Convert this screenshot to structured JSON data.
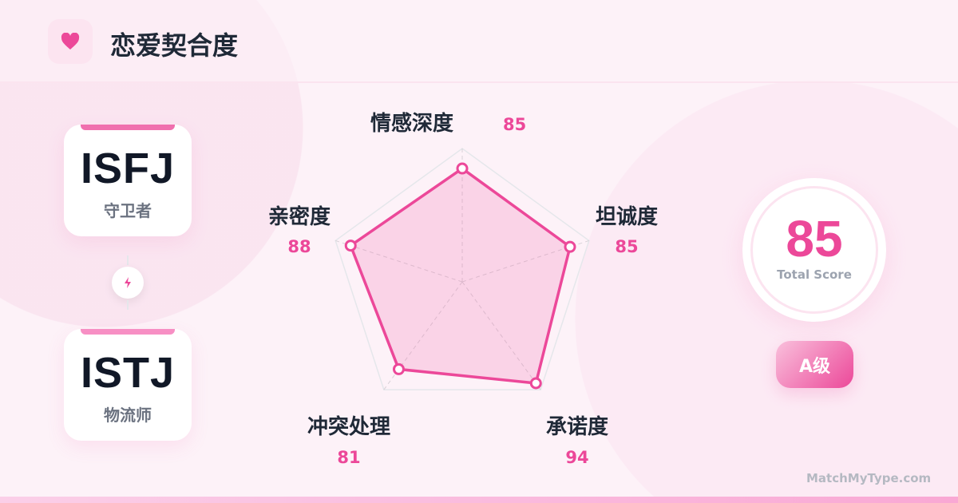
{
  "header": {
    "title": "恋爱契合度",
    "icon": "heart-icon"
  },
  "types": [
    {
      "code": "ISFJ",
      "role": "守卫者"
    },
    {
      "code": "ISTJ",
      "role": "物流师"
    }
  ],
  "connector_icon": "lightning-icon",
  "score": {
    "value": "85",
    "label": "Total Score",
    "grade": "A级"
  },
  "brand": "MatchMyType.com",
  "colors": {
    "accent": "#ec4899",
    "text": "#1f2937"
  },
  "chart_data": {
    "type": "radar",
    "categories": [
      "情感深度",
      "坦诚度",
      "承诺度",
      "冲突处理",
      "亲密度"
    ],
    "values": [
      85,
      85,
      94,
      81,
      88
    ],
    "value_labels": [
      "85",
      "85",
      "94",
      "81",
      "88"
    ],
    "range": [
      0,
      100
    ],
    "grid_levels": [
      25,
      50,
      75,
      100
    ]
  }
}
